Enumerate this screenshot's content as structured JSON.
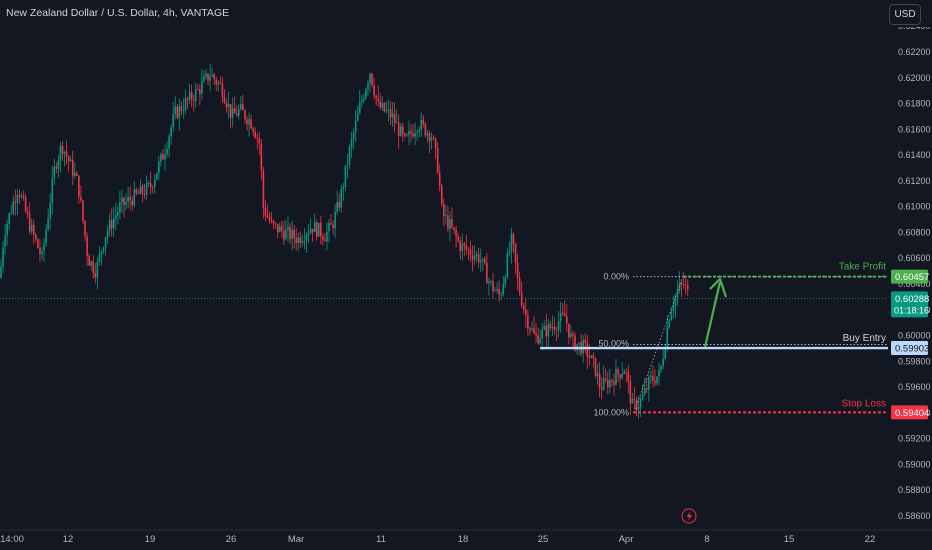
{
  "header": {
    "symbol_title": "New Zealand Dollar / U.S. Dollar, 4h, VANTAGE",
    "currency_button": "USD"
  },
  "price_axis": {
    "ticks": [
      "0.62200",
      "0.62000",
      "0.61800",
      "0.61600",
      "0.61400",
      "0.61200",
      "0.61000",
      "0.60800",
      "0.60600",
      "0.60400",
      "0.60200",
      "0.60000",
      "0.59800",
      "0.59600",
      "0.59400",
      "0.59200",
      "0.59000",
      "0.58800",
      "0.58600"
    ],
    "top_partial": "0.62400"
  },
  "time_axis": {
    "ticks": [
      "14:00",
      "12",
      "19",
      "26",
      "Mar",
      "11",
      "18",
      "25",
      "Apr",
      "8",
      "15",
      "22"
    ]
  },
  "price_tags": {
    "take_profit": {
      "value": "0.60457",
      "color": "#4caf50"
    },
    "current": {
      "value": "0.60288",
      "countdown": "01:18:16",
      "color": "#089981"
    },
    "buy_entry": {
      "value": "0.59903",
      "color": "#bbd9fb"
    },
    "stop_loss": {
      "value": "0.59404",
      "color": "#f23645"
    }
  },
  "annotations": {
    "take_profit_label": "Take Profit",
    "buy_entry_label": "Buy Entry",
    "stop_loss_label": "Stop Loss",
    "fib_0": "0.00%",
    "fib_50": "50.00%",
    "fib_100": "100.00%"
  },
  "colors": {
    "up": "#089981",
    "down": "#f23645",
    "background": "#131722",
    "arrow": "#4caf50"
  },
  "icons": {
    "event_marker": "lightning-icon"
  },
  "chart_data": {
    "type": "candlestick",
    "title": "New Zealand Dollar / U.S. Dollar, 4h, VANTAGE",
    "y_unit": "USD",
    "ylim": [
      0.5855,
      0.6248
    ],
    "grid": false,
    "x_ticks": [
      "14:00",
      "12",
      "19",
      "26",
      "Mar",
      "11",
      "18",
      "25",
      "Apr",
      "8",
      "15",
      "22"
    ],
    "price_path": {
      "x": [
        "14:00",
        "12",
        "19",
        "26",
        "Mar",
        "11",
        "18",
        "25",
        "Apr"
      ],
      "close": [
        0.6055,
        0.6065,
        0.6115,
        0.6185,
        0.6085,
        0.619,
        0.611,
        0.5995,
        0.5945
      ]
    },
    "levels": {
      "take_profit": 0.60457,
      "current_price": 0.60288,
      "buy_entry": 0.59903,
      "stop_loss": 0.59404,
      "fib_0": 0.60457,
      "fib_50": 0.59931,
      "fib_100": 0.59404
    }
  }
}
